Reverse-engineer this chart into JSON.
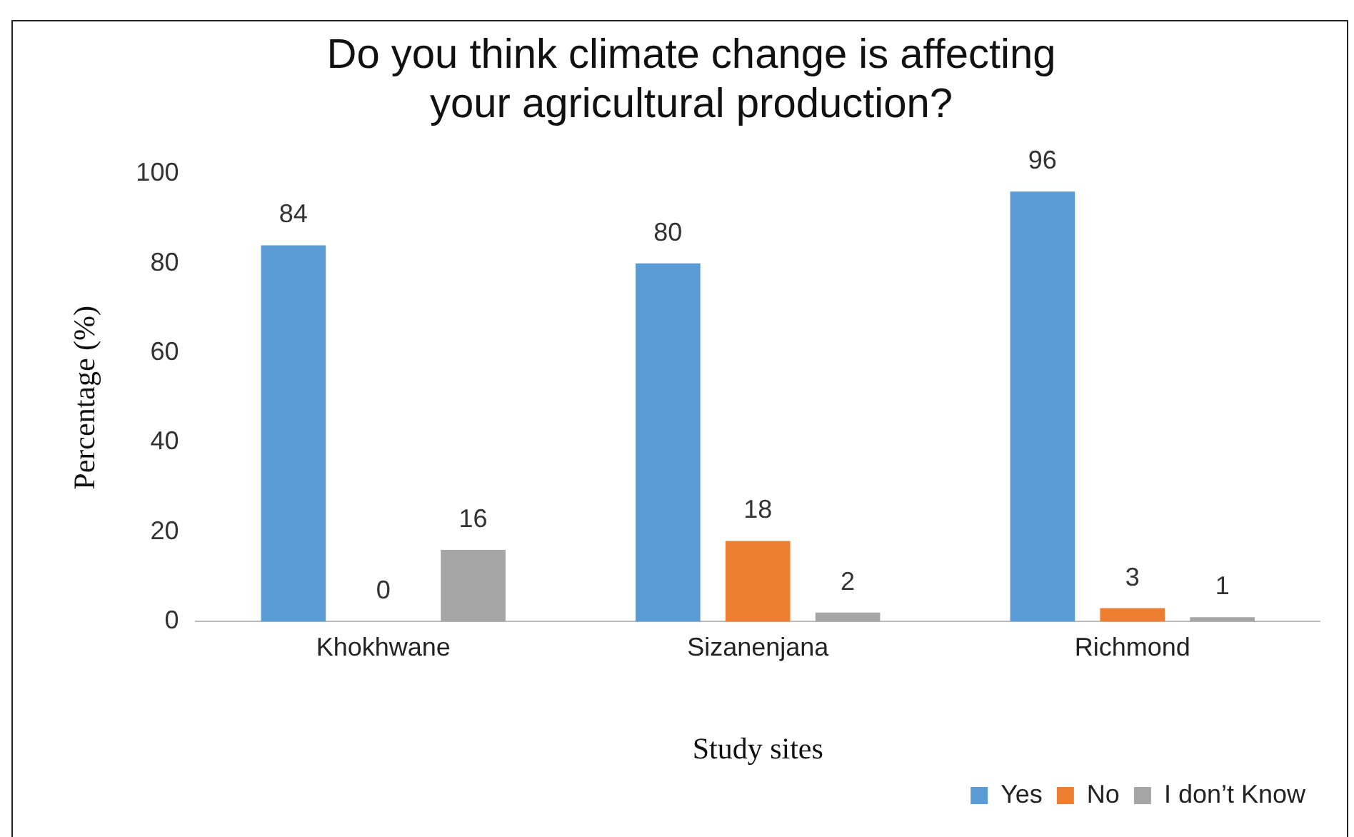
{
  "chart_data": {
    "type": "bar",
    "title": "Do you think climate change is affecting your agricultural production?",
    "xlabel": "Study sites",
    "ylabel": "Percentage (%)",
    "categories": [
      "Khokhwane",
      "Sizanenjana",
      "Richmond"
    ],
    "series": [
      {
        "name": "Yes",
        "color": "#5b9bd5",
        "values": [
          84,
          80,
          96
        ]
      },
      {
        "name": "No",
        "color": "#ed7d31",
        "values": [
          0,
          18,
          3
        ]
      },
      {
        "name": "I don’t Know",
        "color": "#a5a5a5",
        "values": [
          16,
          2,
          1
        ]
      }
    ],
    "ylim": [
      0,
      100
    ],
    "yticks": [
      0,
      20,
      40,
      60,
      80,
      100
    ],
    "grid": false,
    "legend": "bottom right",
    "data_labels": true
  }
}
